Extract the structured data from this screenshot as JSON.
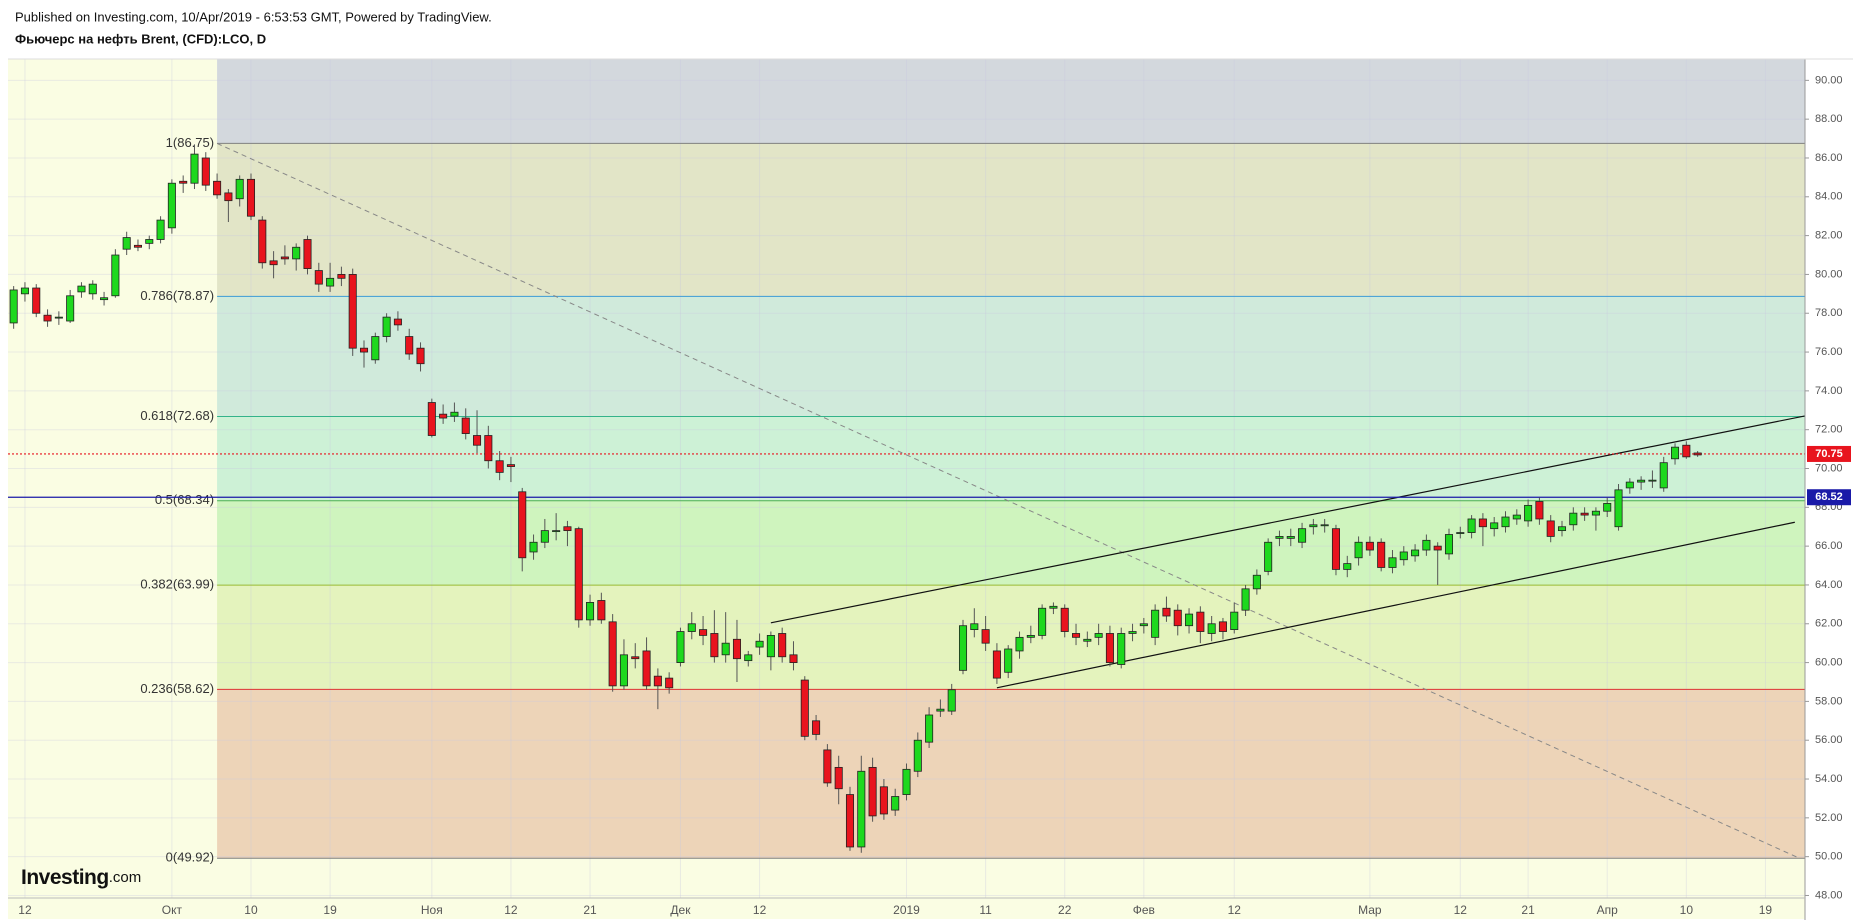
{
  "chart_data": {
    "type": "candlestick",
    "header": "Published on Investing.com, 10/Apr/2019 - 6:53:53 GMT, Powered by TradingView.",
    "title": "Фьючерс на нефть Brent, (CFD):LCO, D",
    "logo": {
      "name": "Investing",
      "suffix": ".com"
    },
    "up_color": "#1ed81e",
    "down_color": "#e8141e",
    "grid": true,
    "ylim": [
      47.87,
      91.1
    ],
    "yticks": [
      {
        "value": 48,
        "label": "48.00"
      },
      {
        "value": 50,
        "label": "50.00"
      },
      {
        "value": 52,
        "label": "52.00"
      },
      {
        "value": 54,
        "label": "54.00"
      },
      {
        "value": 56,
        "label": "56.00"
      },
      {
        "value": 58,
        "label": "58.00"
      },
      {
        "value": 60,
        "label": "60.00"
      },
      {
        "value": 62,
        "label": "62.00"
      },
      {
        "value": 64,
        "label": "64.00"
      },
      {
        "value": 66,
        "label": "66.00"
      },
      {
        "value": 68,
        "label": "68.00"
      },
      {
        "value": 70,
        "label": "70.00"
      },
      {
        "value": 72,
        "label": "72.00"
      },
      {
        "value": 74,
        "label": "74.00"
      },
      {
        "value": 76,
        "label": "76.00"
      },
      {
        "value": 78,
        "label": "78.00"
      },
      {
        "value": 80,
        "label": "80.00"
      },
      {
        "value": 82,
        "label": "82.00"
      },
      {
        "value": 84,
        "label": "84.00"
      },
      {
        "value": 86,
        "label": "86.00"
      },
      {
        "value": 88,
        "label": "88.00"
      },
      {
        "value": 90,
        "label": "90.00"
      }
    ],
    "categories": [
      null,
      "12",
      null,
      null,
      null,
      null,
      null,
      null,
      null,
      null,
      null,
      null,
      null,
      null,
      "Окт",
      null,
      null,
      null,
      null,
      null,
      null,
      "10",
      null,
      null,
      null,
      null,
      null,
      null,
      "19",
      null,
      null,
      null,
      null,
      null,
      null,
      null,
      null,
      "Ноя",
      null,
      null,
      null,
      null,
      null,
      null,
      "12",
      null,
      null,
      null,
      null,
      null,
      null,
      "21",
      null,
      null,
      null,
      null,
      null,
      null,
      null,
      "Дек",
      null,
      null,
      null,
      null,
      null,
      null,
      "12",
      null,
      null,
      null,
      null,
      null,
      null,
      null,
      null,
      null,
      null,
      null,
      null,
      "2019",
      null,
      null,
      null,
      null,
      null,
      null,
      "11",
      null,
      null,
      null,
      null,
      null,
      null,
      "22",
      null,
      null,
      null,
      null,
      null,
      null,
      "Фев",
      null,
      null,
      null,
      null,
      null,
      null,
      null,
      "12",
      null,
      null,
      null,
      null,
      null,
      null,
      null,
      null,
      null,
      null,
      null,
      "Мар",
      null,
      null,
      null,
      null,
      null,
      null,
      null,
      "12",
      null,
      null,
      null,
      null,
      null,
      "21",
      null,
      null,
      null,
      null,
      null,
      null,
      "Апр",
      null,
      null,
      null,
      null,
      null,
      null,
      "10",
      null,
      null,
      null,
      null,
      null,
      null,
      "19",
      null,
      null,
      null
    ],
    "candles": [
      [
        77.5,
        79.4,
        77.2,
        79.2
      ],
      [
        79.0,
        79.6,
        78.6,
        79.3
      ],
      [
        79.3,
        79.5,
        77.8,
        78.0
      ],
      [
        77.9,
        78.2,
        77.3,
        77.6
      ],
      [
        77.8,
        78.1,
        77.4,
        77.8
      ],
      [
        77.6,
        79.2,
        77.5,
        78.9
      ],
      [
        79.1,
        79.6,
        78.8,
        79.4
      ],
      [
        79.0,
        79.7,
        78.7,
        79.5
      ],
      [
        78.7,
        79.1,
        78.4,
        78.8
      ],
      [
        78.9,
        81.3,
        78.8,
        81.0
      ],
      [
        81.3,
        82.2,
        81.0,
        81.9
      ],
      [
        81.5,
        81.8,
        81.2,
        81.4
      ],
      [
        81.6,
        82.0,
        81.3,
        81.8
      ],
      [
        81.8,
        83.0,
        81.6,
        82.8
      ],
      [
        82.4,
        84.9,
        82.1,
        84.7
      ],
      [
        84.8,
        85.1,
        84.2,
        84.7
      ],
      [
        84.7,
        86.7,
        84.4,
        86.2
      ],
      [
        86.0,
        86.3,
        84.3,
        84.6
      ],
      [
        84.8,
        85.2,
        83.9,
        84.1
      ],
      [
        84.2,
        84.4,
        82.7,
        83.8
      ],
      [
        83.9,
        85.1,
        83.5,
        84.9
      ],
      [
        84.9,
        85.2,
        82.8,
        83.0
      ],
      [
        82.8,
        83.0,
        80.3,
        80.6
      ],
      [
        80.7,
        81.2,
        79.8,
        80.5
      ],
      [
        80.9,
        81.5,
        80.5,
        80.8
      ],
      [
        80.8,
        81.6,
        80.2,
        81.4
      ],
      [
        81.8,
        82.0,
        80.0,
        80.3
      ],
      [
        80.2,
        80.6,
        79.1,
        79.5
      ],
      [
        79.4,
        80.6,
        79.1,
        79.8
      ],
      [
        80.0,
        80.4,
        79.4,
        79.8
      ],
      [
        80.0,
        80.3,
        75.8,
        76.2
      ],
      [
        76.2,
        76.6,
        75.2,
        76.0
      ],
      [
        75.6,
        77.0,
        75.4,
        76.8
      ],
      [
        76.8,
        78.0,
        76.5,
        77.8
      ],
      [
        77.7,
        78.1,
        77.1,
        77.4
      ],
      [
        76.8,
        77.2,
        75.6,
        75.9
      ],
      [
        76.2,
        76.5,
        75.0,
        75.4
      ],
      [
        73.4,
        73.6,
        71.6,
        71.7
      ],
      [
        72.8,
        73.3,
        72.3,
        72.6
      ],
      [
        72.7,
        73.4,
        72.4,
        72.9
      ],
      [
        72.6,
        73.1,
        71.5,
        71.8
      ],
      [
        71.7,
        73.0,
        70.8,
        71.2
      ],
      [
        71.7,
        72.2,
        70.0,
        70.4
      ],
      [
        70.4,
        70.9,
        69.4,
        69.8
      ],
      [
        70.2,
        70.6,
        69.3,
        70.1
      ],
      [
        68.8,
        69.0,
        64.7,
        65.4
      ],
      [
        65.7,
        66.6,
        65.3,
        66.2
      ],
      [
        66.2,
        67.4,
        65.9,
        66.8
      ],
      [
        66.8,
        67.7,
        66.3,
        66.8
      ],
      [
        67.0,
        67.3,
        66.0,
        66.8
      ],
      [
        66.9,
        67.0,
        61.8,
        62.2
      ],
      [
        62.2,
        63.5,
        61.9,
        63.1
      ],
      [
        63.2,
        63.6,
        62.0,
        62.2
      ],
      [
        62.1,
        62.5,
        58.5,
        58.8
      ],
      [
        58.8,
        61.2,
        58.6,
        60.4
      ],
      [
        60.3,
        61.0,
        59.7,
        60.2
      ],
      [
        60.6,
        61.3,
        58.6,
        58.8
      ],
      [
        59.3,
        59.7,
        57.6,
        58.8
      ],
      [
        59.2,
        59.5,
        58.4,
        58.7
      ],
      [
        60.0,
        61.8,
        59.8,
        61.6
      ],
      [
        61.6,
        62.6,
        61.2,
        62.0
      ],
      [
        61.7,
        62.4,
        60.9,
        61.4
      ],
      [
        61.5,
        62.7,
        60.0,
        60.3
      ],
      [
        60.4,
        62.6,
        60.0,
        61.0
      ],
      [
        61.2,
        62.2,
        59.0,
        60.2
      ],
      [
        60.1,
        60.6,
        59.8,
        60.4
      ],
      [
        60.8,
        61.5,
        60.4,
        61.1
      ],
      [
        60.3,
        61.6,
        59.6,
        61.4
      ],
      [
        61.5,
        61.8,
        60.0,
        60.3
      ],
      [
        60.4,
        61.1,
        59.6,
        60.0
      ],
      [
        59.1,
        59.3,
        56.0,
        56.2
      ],
      [
        57.0,
        57.3,
        56.0,
        56.3
      ],
      [
        55.5,
        55.8,
        53.6,
        53.8
      ],
      [
        54.6,
        55.2,
        52.7,
        53.5
      ],
      [
        53.2,
        53.6,
        50.3,
        50.5
      ],
      [
        50.5,
        55.2,
        50.2,
        54.4
      ],
      [
        54.6,
        55.1,
        51.8,
        52.1
      ],
      [
        53.6,
        54.0,
        51.9,
        52.2
      ],
      [
        52.4,
        53.5,
        52.1,
        53.1
      ],
      [
        53.2,
        54.8,
        52.9,
        54.5
      ],
      [
        54.4,
        56.4,
        54.1,
        56.0
      ],
      [
        55.9,
        57.7,
        55.6,
        57.3
      ],
      [
        57.5,
        58.1,
        57.2,
        57.6
      ],
      [
        57.5,
        58.9,
        57.3,
        58.6
      ],
      [
        59.6,
        62.2,
        59.4,
        61.9
      ],
      [
        61.7,
        62.8,
        61.3,
        62.0
      ],
      [
        61.7,
        62.4,
        60.6,
        61.0
      ],
      [
        60.6,
        61.0,
        58.9,
        59.2
      ],
      [
        59.5,
        60.9,
        59.2,
        60.7
      ],
      [
        60.6,
        61.6,
        60.2,
        61.3
      ],
      [
        61.3,
        61.9,
        61.0,
        61.4
      ],
      [
        61.4,
        63.0,
        61.2,
        62.8
      ],
      [
        62.8,
        63.1,
        62.5,
        62.9
      ],
      [
        62.8,
        63.0,
        61.3,
        61.6
      ],
      [
        61.5,
        62.0,
        60.9,
        61.3
      ],
      [
        61.1,
        61.6,
        60.8,
        61.2
      ],
      [
        61.3,
        62.0,
        60.9,
        61.5
      ],
      [
        61.5,
        61.9,
        59.8,
        60.0
      ],
      [
        59.9,
        61.8,
        59.7,
        61.5
      ],
      [
        61.5,
        62.0,
        61.1,
        61.6
      ],
      [
        61.9,
        62.3,
        61.5,
        62.0
      ],
      [
        61.3,
        63.0,
        60.9,
        62.7
      ],
      [
        62.8,
        63.4,
        62.1,
        62.4
      ],
      [
        62.7,
        63.0,
        61.4,
        61.9
      ],
      [
        61.9,
        62.8,
        61.5,
        62.5
      ],
      [
        62.6,
        62.9,
        61.0,
        61.6
      ],
      [
        61.5,
        62.4,
        61.1,
        62.0
      ],
      [
        62.1,
        62.3,
        61.2,
        61.6
      ],
      [
        61.7,
        63.1,
        61.5,
        62.6
      ],
      [
        62.7,
        64.0,
        62.4,
        63.8
      ],
      [
        63.8,
        64.8,
        63.5,
        64.5
      ],
      [
        64.7,
        66.4,
        64.5,
        66.2
      ],
      [
        66.4,
        66.8,
        66.0,
        66.5
      ],
      [
        66.4,
        66.9,
        66.0,
        66.5
      ],
      [
        66.2,
        67.2,
        65.9,
        66.9
      ],
      [
        67.0,
        67.4,
        66.6,
        67.1
      ],
      [
        67.1,
        67.4,
        66.7,
        67.1
      ],
      [
        66.9,
        67.1,
        64.5,
        64.8
      ],
      [
        64.8,
        65.5,
        64.4,
        65.1
      ],
      [
        65.4,
        66.5,
        65.0,
        66.2
      ],
      [
        66.2,
        66.5,
        65.5,
        65.8
      ],
      [
        66.2,
        66.4,
        64.7,
        64.9
      ],
      [
        64.9,
        65.8,
        64.6,
        65.4
      ],
      [
        65.3,
        66.0,
        65.0,
        65.7
      ],
      [
        65.5,
        66.1,
        65.2,
        65.8
      ],
      [
        65.8,
        66.6,
        65.5,
        66.3
      ],
      [
        66.0,
        66.2,
        64.0,
        65.8
      ],
      [
        65.6,
        66.9,
        65.3,
        66.6
      ],
      [
        66.7,
        67.0,
        66.4,
        66.7
      ],
      [
        66.7,
        67.6,
        66.4,
        67.4
      ],
      [
        67.4,
        67.7,
        66.0,
        67.0
      ],
      [
        66.9,
        67.5,
        66.5,
        67.2
      ],
      [
        67.0,
        67.8,
        66.7,
        67.5
      ],
      [
        67.4,
        67.9,
        67.1,
        67.6
      ],
      [
        67.3,
        68.4,
        67.0,
        68.1
      ],
      [
        68.3,
        68.5,
        67.1,
        67.4
      ],
      [
        67.3,
        67.6,
        66.2,
        66.5
      ],
      [
        66.8,
        67.3,
        66.5,
        67.0
      ],
      [
        67.1,
        68.0,
        66.8,
        67.7
      ],
      [
        67.7,
        68.0,
        67.3,
        67.6
      ],
      [
        67.6,
        68.0,
        66.8,
        67.8
      ],
      [
        67.8,
        68.5,
        67.5,
        68.2
      ],
      [
        67.0,
        69.2,
        66.8,
        68.9
      ],
      [
        69.0,
        69.5,
        68.7,
        69.3
      ],
      [
        69.3,
        69.6,
        68.9,
        69.4
      ],
      [
        69.4,
        69.9,
        69.0,
        69.4
      ],
      [
        69.0,
        70.6,
        68.8,
        70.3
      ],
      [
        70.5,
        71.3,
        70.2,
        71.1
      ],
      [
        71.2,
        71.4,
        70.5,
        70.6
      ],
      [
        70.8,
        70.9,
        70.6,
        70.7
      ],
      null,
      null,
      null,
      null,
      null,
      null,
      null,
      null,
      null
    ],
    "fibonacci": {
      "top_fill": "#d3d8dd",
      "anchors": [
        {
          "x": 18,
          "y": 86.75
        },
        {
          "x": 158,
          "y": 49.92
        }
      ],
      "levels": [
        {
          "label": "1(86.75)",
          "value": 86.75,
          "color": "#808080",
          "fill": "#e2e5c7"
        },
        {
          "label": "0.786(78.87)",
          "value": 78.87,
          "color": "#3d9bd6",
          "fill": "#d0eadb"
        },
        {
          "label": "0.618(72.68)",
          "value": 72.68,
          "color": "#33b38a",
          "fill": "#cdf1d6"
        },
        {
          "label": "0.5(68.34)",
          "value": 68.34,
          "color": "#4caf50",
          "fill": "#cff4be"
        },
        {
          "label": "0.382(63.99)",
          "value": 63.99,
          "color": "#99bb33",
          "fill": "#e4f3bd"
        },
        {
          "label": "0.236(58.62)",
          "value": 58.62,
          "color": "#dd3333",
          "fill": "#edd4b8"
        },
        {
          "label": "0(49.92)",
          "value": 49.92,
          "color": "#808080"
        }
      ]
    },
    "trend_lines": [
      {
        "x": [
          67,
          158.5
        ],
        "y": [
          62.05,
          72.71
        ]
      },
      {
        "x": [
          87,
          157.6
        ],
        "y": [
          58.7,
          67.23
        ]
      }
    ],
    "price_lines": [
      {
        "value": 70.75,
        "color": "#e8141e",
        "dotted": true
      },
      {
        "value": 68.52,
        "color": "#1a1aa8",
        "dotted": false
      }
    ]
  }
}
